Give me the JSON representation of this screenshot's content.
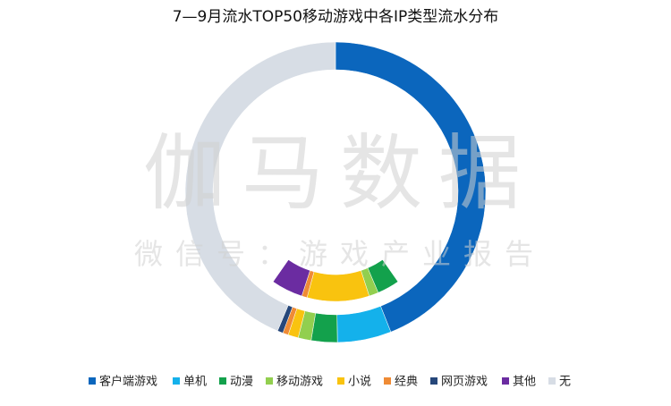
{
  "chart_data": {
    "type": "donut",
    "title": "7—9月流水TOP50移动游戏中各IP类型流水分布",
    "watermark": "伽马数据",
    "watermark_subtitle": "微信号：游戏产业报告",
    "categories": [
      "客户端游戏",
      "单机",
      "动漫",
      "移动游戏",
      "小说",
      "经典",
      "网页游戏",
      "其他",
      "无"
    ],
    "colors": [
      "#0b66bd",
      "#14b1eb",
      "#13a14c",
      "#92cf4f",
      "#f9c30f",
      "#ef8b35",
      "#26477a",
      "#6b2ca1",
      "#d7dde5"
    ],
    "series": [
      {
        "values": [
          44,
          5.8,
          2.8,
          1.4,
          1.1,
          0.6,
          0.6,
          0,
          43.7
        ]
      },
      {
        "values": [
          40.3,
          0,
          3.3,
          1.4,
          9.2,
          0.8,
          0,
          4.7,
          40.3
        ],
        "colors": [
          "#ffffff",
          "#ffffff",
          "#13a14c",
          "#92cf4f",
          "#f9c30f",
          "#ef8b35",
          "#26477a",
          "#6b2ca1",
          "#ffffff"
        ]
      }
    ],
    "legend": "bottom"
  }
}
